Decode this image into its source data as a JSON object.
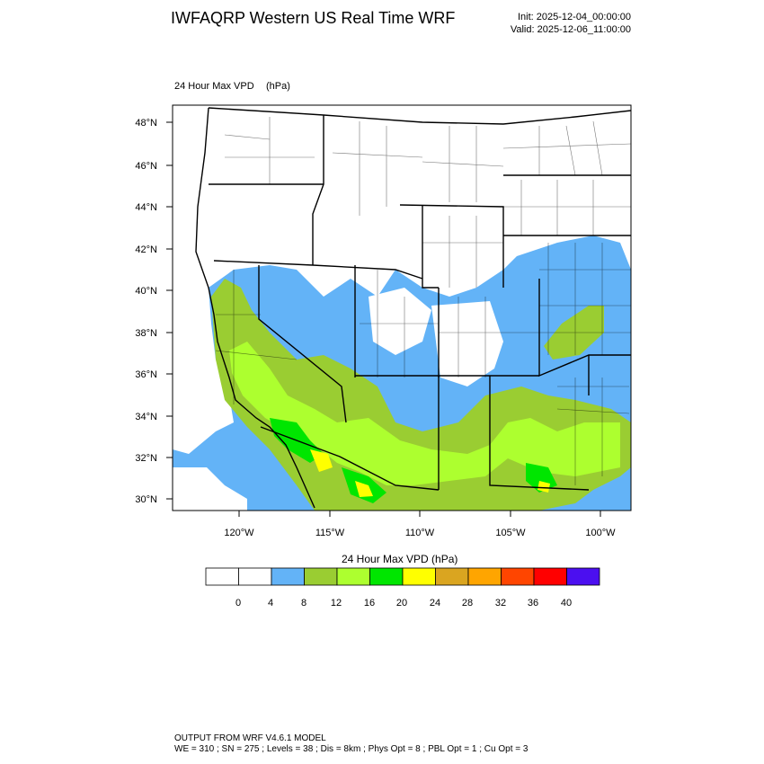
{
  "header": {
    "title": "IWFAQRP Western US Real Time WRF",
    "init": "Init: 2025-12-04_00:00:00",
    "valid": "Valid: 2025-12-06_11:00:00"
  },
  "map": {
    "field_label": "24 Hour Max VPD",
    "field_units": "(hPa)",
    "lat_labels": [
      "30°N",
      "32°N",
      "34°N",
      "36°N",
      "38°N",
      "40°N",
      "42°N",
      "44°N",
      "46°N",
      "48°N"
    ],
    "lon_labels": [
      "120°W",
      "115°W",
      "110°W",
      "105°W",
      "100°W"
    ]
  },
  "colorbar": {
    "title": "24 Hour Max VPD  (hPa)",
    "tick_labels": [
      "0",
      "4",
      "8",
      "12",
      "16",
      "20",
      "24",
      "28",
      "32",
      "36",
      "40"
    ],
    "colors": [
      "#ffffff",
      "#ffffff",
      "#63b3f7",
      "#9acd32",
      "#adff2f",
      "#00e600",
      "#ffff00",
      "#daa520",
      "#ffa500",
      "#ff4500",
      "#ff0000",
      "#4b0ff0"
    ]
  },
  "footer": {
    "line1": "OUTPUT FROM WRF V4.6.1 MODEL",
    "line2": "WE = 310 ; SN = 275 ; Levels = 38 ; Dis = 8km ; Phys Opt = 8 ; PBL Opt = 1 ; Cu Opt = 3"
  }
}
